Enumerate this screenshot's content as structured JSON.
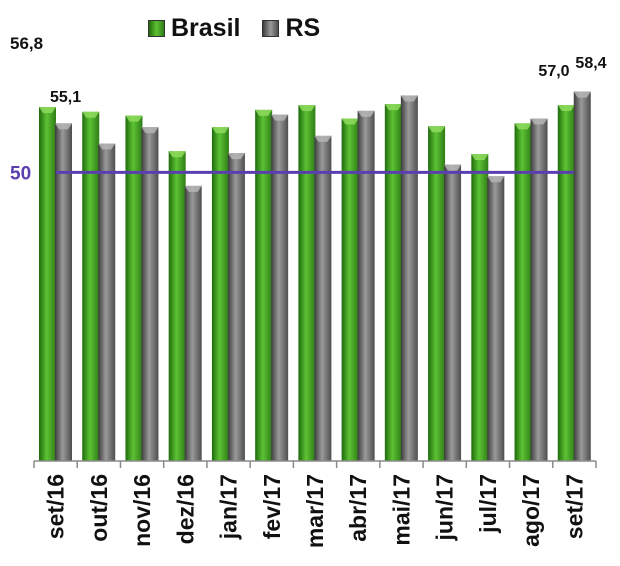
{
  "chart_data": {
    "type": "bar",
    "categories": [
      "set/16",
      "out/16",
      "nov/16",
      "dez/16",
      "jan/17",
      "fev/17",
      "mar/17",
      "abr/17",
      "mai/17",
      "jun/17",
      "jul/17",
      "ago/17",
      "set/17"
    ],
    "series": [
      {
        "name": "Brasil",
        "color": "#3c9a1f",
        "values": [
          56.8,
          56.3,
          55.9,
          52.2,
          54.7,
          56.5,
          57.0,
          55.6,
          57.1,
          54.8,
          51.9,
          55.1,
          57.0
        ]
      },
      {
        "name": "RS",
        "color": "#6d6d6d",
        "values": [
          55.1,
          53.0,
          54.7,
          48.6,
          52.0,
          56.0,
          53.8,
          56.4,
          58.0,
          50.8,
          49.6,
          55.6,
          58.4
        ]
      }
    ],
    "ylim": [
      20,
      60
    ],
    "reference_line": {
      "value": 50,
      "label": "50",
      "color": "#5b3fb0"
    },
    "data_labels": [
      {
        "series": 0,
        "index": 0,
        "text": "56,8"
      },
      {
        "series": 1,
        "index": 0,
        "text": "55,1"
      },
      {
        "series": 0,
        "index": 12,
        "text": "57,0"
      },
      {
        "series": 1,
        "index": 12,
        "text": "58,4"
      }
    ],
    "legend_position": "top",
    "grid": false
  },
  "legend": {
    "brasil": "Brasil",
    "rs": "RS"
  },
  "corner_label": "56,8"
}
